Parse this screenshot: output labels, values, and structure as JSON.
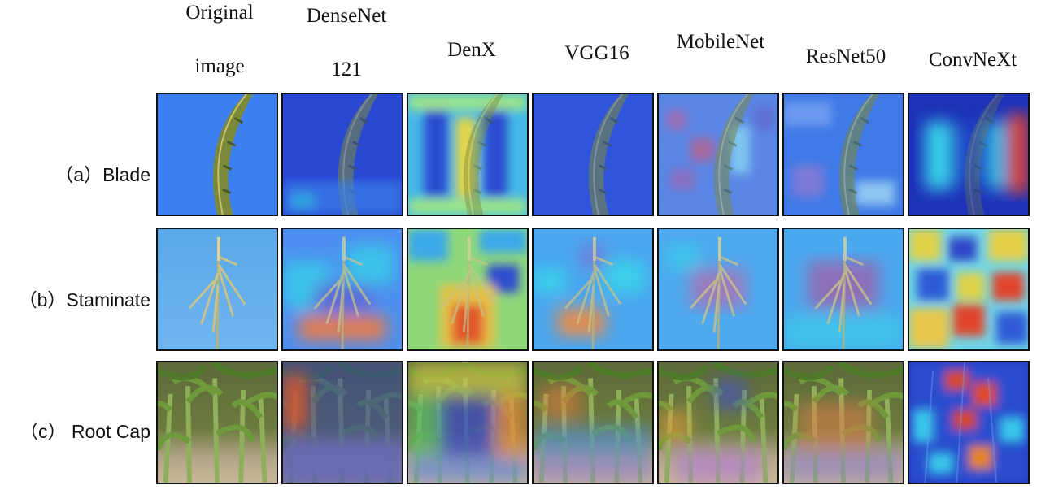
{
  "figure": {
    "column_headers": [
      {
        "line1": "Original",
        "line2": "image"
      },
      {
        "line1": "DenseNet",
        "line2": "121"
      },
      {
        "line1": "DenX",
        "line2": ""
      },
      {
        "line1": "VGG16",
        "line2": ""
      },
      {
        "line1": "MobileNet",
        "line2": ""
      },
      {
        "line1": "ResNet50",
        "line2": ""
      },
      {
        "line1": "ConvNeXt",
        "line2": ""
      }
    ],
    "rows": [
      {
        "label": "（a）Blade"
      },
      {
        "label": "（b）Staminate"
      },
      {
        "label": "（c） Root Cap"
      }
    ]
  }
}
